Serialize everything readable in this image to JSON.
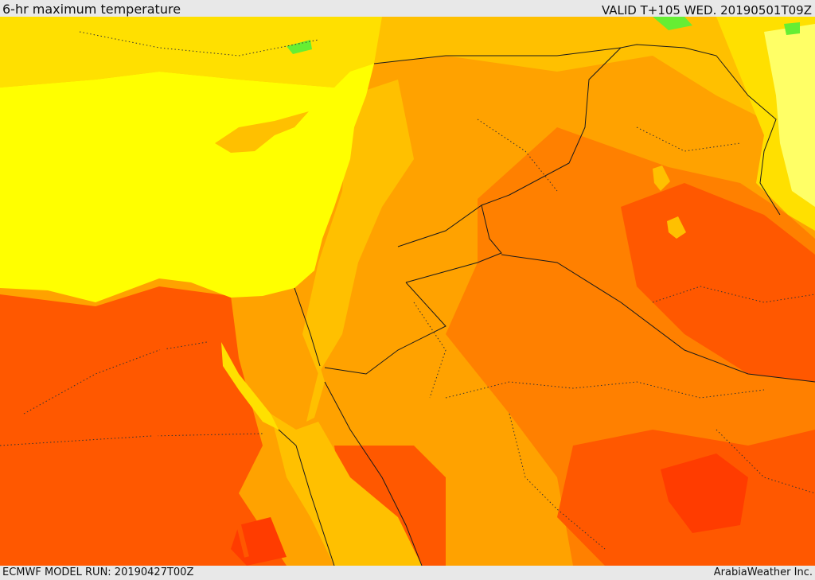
{
  "header": {
    "title": "6-hr maximum temperature",
    "valid": "VALID T+105 WED. 20190501T09Z"
  },
  "footer": {
    "model_run": "ECMWF MODEL RUN: 20190427T00Z",
    "credit": "ArabiaWeather Inc."
  },
  "palette": {
    "sea": "#ffff00",
    "cool": "#ffe000",
    "mild": "#ffc000",
    "warm": "#ffa200",
    "hot": "#ff8000",
    "very_hot": "#ff5800",
    "extreme": "#ff3c00",
    "cold_green": "#66ee33",
    "pale": "#ffff66"
  }
}
